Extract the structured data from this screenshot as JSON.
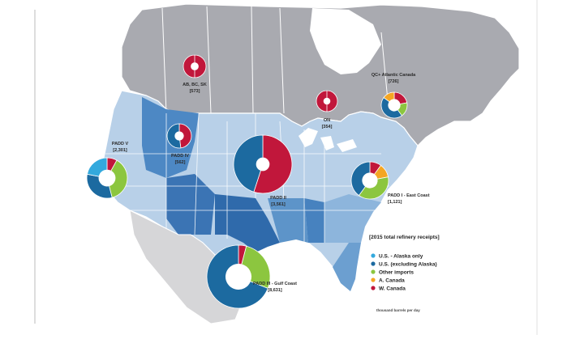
{
  "colors": {
    "us_alaska": "#33a9dd",
    "us_excl_alaska": "#1c6aa0",
    "other_imports": "#8cc63f",
    "e_canada": "#f5a623",
    "w_canada": "#c1173b"
  },
  "regions": [
    {
      "key": "ab_bc_sk",
      "name": "AB, BC, SK",
      "value": "[573]"
    },
    {
      "key": "on",
      "name": "ON",
      "value": "[354]"
    },
    {
      "key": "qc_atlantic",
      "name": "QC+ Atlantic Canada",
      "value": "[726]"
    },
    {
      "key": "padd5",
      "name": "PADD V",
      "value": "[2,301]"
    },
    {
      "key": "padd4",
      "name": "PADD IV",
      "value": "[562]"
    },
    {
      "key": "padd2",
      "name": "PADD II",
      "value": "[3,561]"
    },
    {
      "key": "padd1",
      "name": "PADD I - East Coast",
      "value": "[1,121]"
    },
    {
      "key": "padd3",
      "name": "PADD III - Gulf Coast",
      "value": "[8,631]"
    }
  ],
  "legend": {
    "title": "[2015 total refinery receipts]",
    "items": [
      {
        "label": "U.S. - Alaska only",
        "color_key": "us_alaska"
      },
      {
        "label": "U.S. (excluding Alaska)",
        "color_key": "us_excl_alaska"
      },
      {
        "label": "Other imports",
        "color_key": "other_imports"
      },
      {
        "label": "A. Canada",
        "color_key": "e_canada"
      },
      {
        "label": "W. Canada",
        "color_key": "w_canada"
      }
    ]
  },
  "footnote": "thousand barrels per day",
  "pies": {
    "ab_bc_sk": {
      "slices": [
        {
          "color_key": "w_canada",
          "share": 1.0
        }
      ]
    },
    "on": {
      "slices": [
        {
          "color_key": "w_canada",
          "share": 1.0
        }
      ]
    },
    "qc_atlantic": {
      "slices": [
        {
          "color_key": "w_canada",
          "share": 0.22
        },
        {
          "color_key": "other_imports",
          "share": 0.18
        },
        {
          "color_key": "us_excl_alaska",
          "share": 0.45
        },
        {
          "color_key": "e_canada",
          "share": 0.15
        }
      ]
    },
    "padd5": {
      "slices": [
        {
          "color_key": "w_canada",
          "share": 0.08
        },
        {
          "color_key": "other_imports",
          "share": 0.38
        },
        {
          "color_key": "us_excl_alaska",
          "share": 0.32
        },
        {
          "color_key": "us_alaska",
          "share": 0.22
        }
      ]
    },
    "padd4": {
      "slices": [
        {
          "color_key": "w_canada",
          "share": 0.48
        },
        {
          "color_key": "us_excl_alaska",
          "share": 0.52
        }
      ]
    },
    "padd2": {
      "slices": [
        {
          "color_key": "w_canada",
          "share": 0.55
        },
        {
          "color_key": "us_excl_alaska",
          "share": 0.45
        }
      ]
    },
    "padd1": {
      "slices": [
        {
          "color_key": "w_canada",
          "share": 0.1
        },
        {
          "color_key": "e_canada",
          "share": 0.12
        },
        {
          "color_key": "other_imports",
          "share": 0.38
        },
        {
          "color_key": "us_excl_alaska",
          "share": 0.4
        }
      ]
    },
    "padd3": {
      "slices": [
        {
          "color_key": "w_canada",
          "share": 0.04
        },
        {
          "color_key": "other_imports",
          "share": 0.27
        },
        {
          "color_key": "us_excl_alaska",
          "share": 0.69
        }
      ]
    }
  }
}
